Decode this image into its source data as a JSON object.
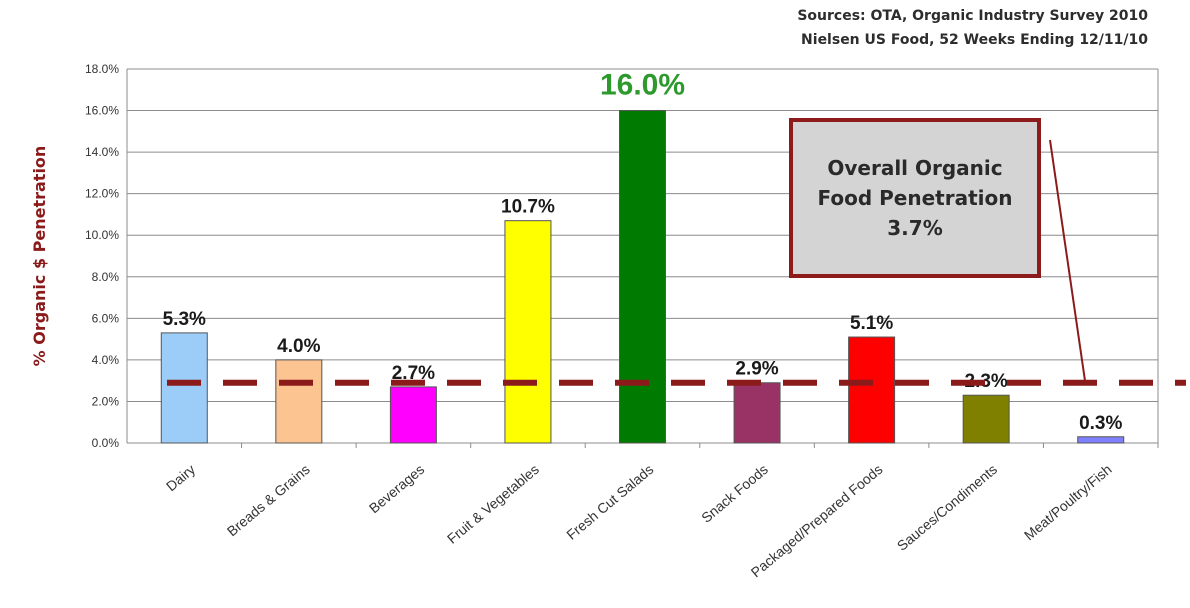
{
  "sources": {
    "line1": "Sources: OTA, Organic Industry Survey 2010",
    "line2": "Nielsen US Food, 52 Weeks Ending 12/11/10"
  },
  "callout": {
    "line1": "Overall Organic",
    "line2": "Food Penetration",
    "line3": "3.7%"
  },
  "colors": {
    "reference_line": "#8b1a1a",
    "highlight_label": "#2e9a2e"
  },
  "chart_data": {
    "type": "bar",
    "title": "",
    "xlabel": "",
    "ylabel": "% Organic $ Penetration",
    "ylim": [
      0,
      18
    ],
    "yticks": [
      "0.0%",
      "2.0%",
      "4.0%",
      "6.0%",
      "8.0%",
      "10.0%",
      "12.0%",
      "14.0%",
      "16.0%",
      "18.0%"
    ],
    "grid": true,
    "categories": [
      "Dairy",
      "Breads & Grains",
      "Beverages",
      "Fruit & Vegetables",
      "Fresh Cut Salads",
      "Snack Foods",
      "Packaged/Prepared Foods",
      "Sauces/Condiments",
      "Meat/Poultry/Fish"
    ],
    "values": [
      5.3,
      4.0,
      2.7,
      10.7,
      16.0,
      2.9,
      5.1,
      2.3,
      0.3
    ],
    "data_labels": [
      "5.3%",
      "4.0%",
      "2.7%",
      "10.7%",
      "16.0%",
      "2.9%",
      "5.1%",
      "2.3%",
      "0.3%"
    ],
    "bar_colors": [
      "#9ccdf8",
      "#fcc491",
      "#ff00ff",
      "#ffff00",
      "#007a00",
      "#993366",
      "#ff0000",
      "#7f7f00",
      "#8080ff"
    ],
    "highlight_index": 4,
    "reference_line": {
      "value": 2.9,
      "style": "dashed"
    }
  }
}
